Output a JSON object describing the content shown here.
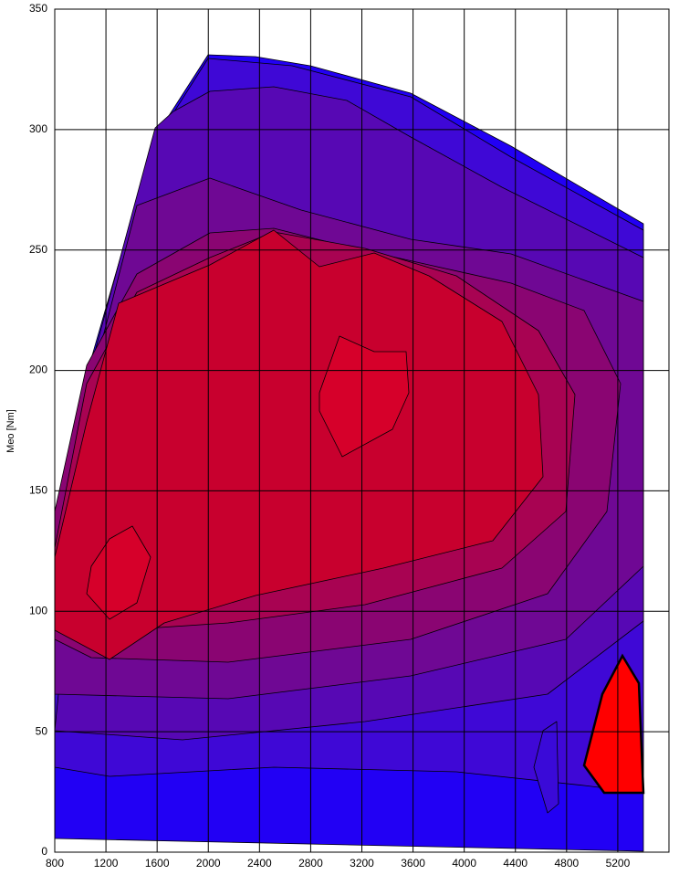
{
  "chart_data": {
    "type": "contour",
    "ylabel": "Meo [Nm]",
    "xlim": [
      800,
      5600
    ],
    "xticks": [
      800,
      1200,
      1600,
      2000,
      2400,
      2800,
      3200,
      3600,
      4000,
      4400,
      4800,
      5200
    ],
    "ylim": [
      0,
      350
    ],
    "yticks": [
      0,
      50,
      100,
      150,
      200,
      250,
      300,
      350
    ],
    "grid": true
  }
}
